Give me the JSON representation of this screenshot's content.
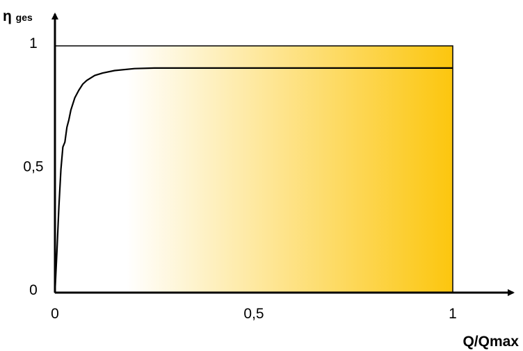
{
  "chart_data": {
    "type": "line",
    "title": "",
    "xlabel": "Q/Qmax",
    "ylabel": {
      "main": "η",
      "sub": "ges"
    },
    "xlim": [
      0,
      1
    ],
    "ylim": [
      0,
      1
    ],
    "x_ticks": [
      {
        "value": 0,
        "label": "0"
      },
      {
        "value": 0.5,
        "label": "0,5"
      },
      {
        "value": 1,
        "label": "1"
      }
    ],
    "y_ticks": [
      {
        "value": 0,
        "label": "0"
      },
      {
        "value": 0.5,
        "label": "0,5"
      },
      {
        "value": 1,
        "label": "1"
      }
    ],
    "grid": false,
    "legend": "none",
    "series": [
      {
        "x": [
          0,
          0.005,
          0.01,
          0.015,
          0.02,
          0.025,
          0.03,
          0.035,
          0.04,
          0.05,
          0.06,
          0.07,
          0.08,
          0.1,
          0.12,
          0.15,
          0.2,
          0.25,
          0.3,
          0.4,
          0.5,
          0.6,
          0.7,
          0.8,
          0.9,
          1.0
        ],
        "y": [
          0,
          0.17,
          0.35,
          0.5,
          0.59,
          0.61,
          0.67,
          0.7,
          0.74,
          0.79,
          0.82,
          0.845,
          0.86,
          0.88,
          0.89,
          0.9,
          0.908,
          0.91,
          0.91,
          0.91,
          0.91,
          0.91,
          0.91,
          0.91,
          0.91,
          0.91
        ]
      }
    ],
    "colors": {
      "gradient_start": "#ffffff",
      "gradient_end": "#fcc60e",
      "line": "#000000"
    }
  }
}
